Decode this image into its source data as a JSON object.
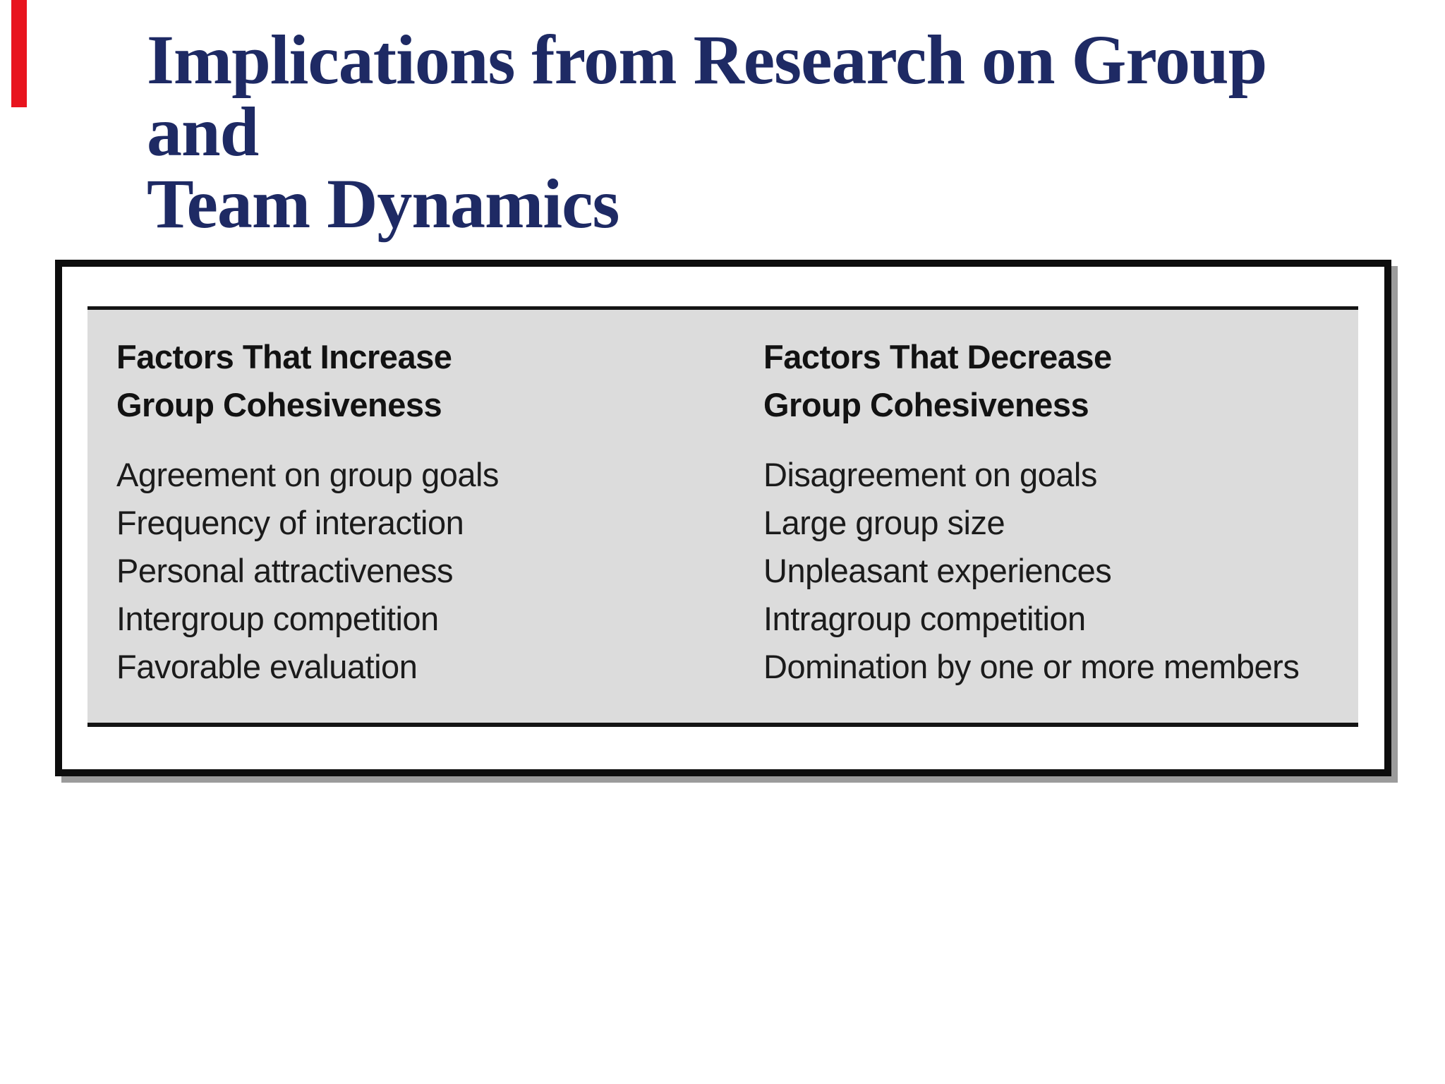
{
  "slide": {
    "title_lines": [
      "Implications from Research on Group and",
      "Team Dynamics"
    ]
  },
  "table": {
    "columns": [
      {
        "header_lines": [
          "Factors That Increase",
          "Group Cohesiveness"
        ],
        "items": [
          "Agreement on group goals",
          "Frequency of interaction",
          "Personal attractiveness",
          "Intergroup competition",
          "Favorable evaluation"
        ]
      },
      {
        "header_lines": [
          "Factors That Decrease",
          "Group Cohesiveness"
        ],
        "items": [
          "Disagreement on goals",
          "Large group size",
          "Unpleasant experiences",
          "Intragroup competition",
          "Domination by one or more members"
        ]
      }
    ]
  },
  "colors": {
    "accent": "#e8141e",
    "title": "#1e2a64",
    "panel_bg": "#dcdcdc",
    "ink": "#1b1b1b",
    "frame_border": "#0d0d0d",
    "shadow": "#9b9b9b"
  }
}
